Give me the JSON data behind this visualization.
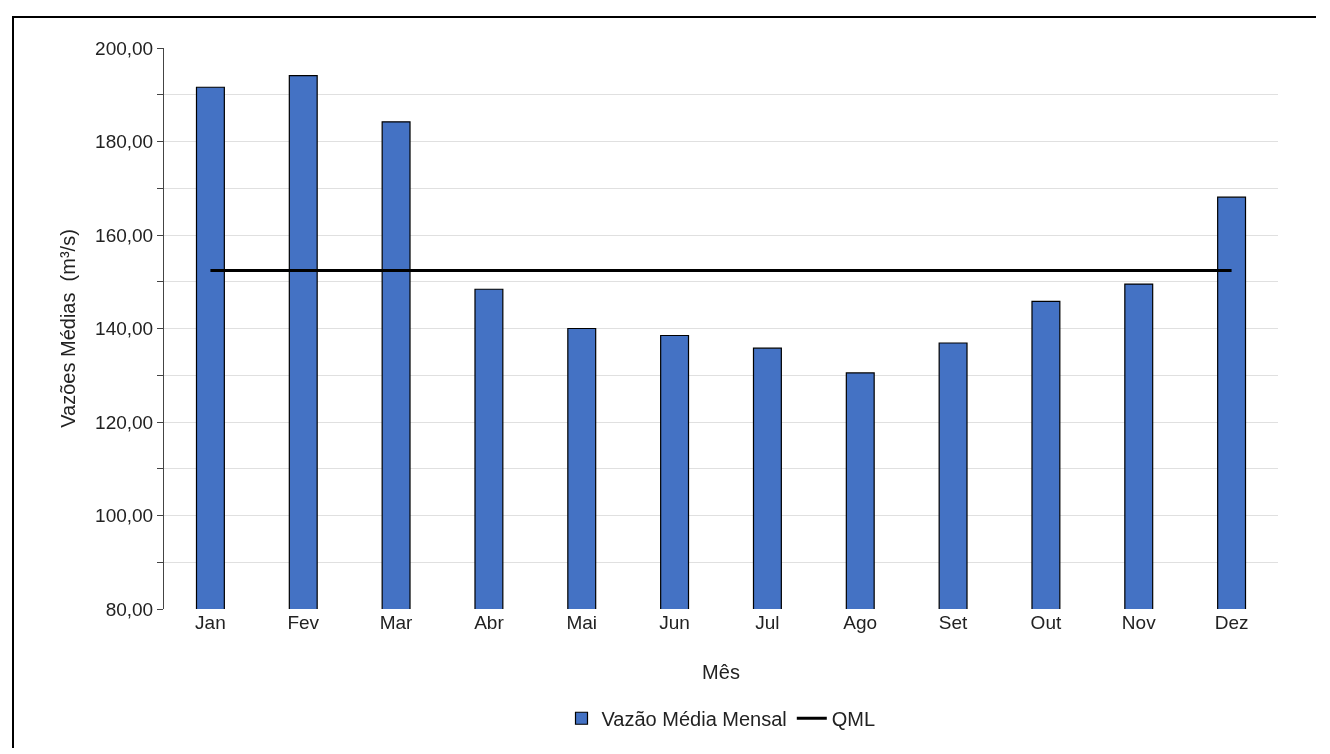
{
  "chart_data": {
    "type": "bar",
    "xlabel": "Mês",
    "ylabel": "Vazões Médias  (m³/s)",
    "categories": [
      "Jan",
      "Fev",
      "Mar",
      "Abr",
      "Mai",
      "Jun",
      "Jul",
      "Ago",
      "Set",
      "Out",
      "Nov",
      "Dez"
    ],
    "series": [
      {
        "name": "Vazão Média Mensal",
        "color": "#4472c4",
        "values": [
          191.6,
          194.1,
          184.2,
          148.4,
          140.0,
          138.5,
          135.8,
          130.5,
          136.9,
          145.8,
          149.5,
          168.1
        ]
      },
      {
        "name": "QML",
        "type": "line",
        "color": "#000000",
        "values": [
          152.4,
          152.4,
          152.4,
          152.4,
          152.4,
          152.4,
          152.4,
          152.4,
          152.4,
          152.4,
          152.4,
          152.4
        ]
      }
    ],
    "ylim": [
      80,
      200
    ],
    "yticks": [
      {
        "value": 80,
        "label": "80,00"
      },
      {
        "value": 90,
        "label": null
      },
      {
        "value": 100,
        "label": "100,00"
      },
      {
        "value": 110,
        "label": null
      },
      {
        "value": 120,
        "label": "120,00"
      },
      {
        "value": 130,
        "label": null
      },
      {
        "value": 140,
        "label": "140,00"
      },
      {
        "value": 150,
        "label": null
      },
      {
        "value": 160,
        "label": "160,00"
      },
      {
        "value": 170,
        "label": null
      },
      {
        "value": 180,
        "label": "180,00"
      },
      {
        "value": 190,
        "label": null
      },
      {
        "value": 200,
        "label": "200,00"
      }
    ],
    "grid": "y",
    "legend": "bottom",
    "marker": "none",
    "line_style": "solid"
  }
}
